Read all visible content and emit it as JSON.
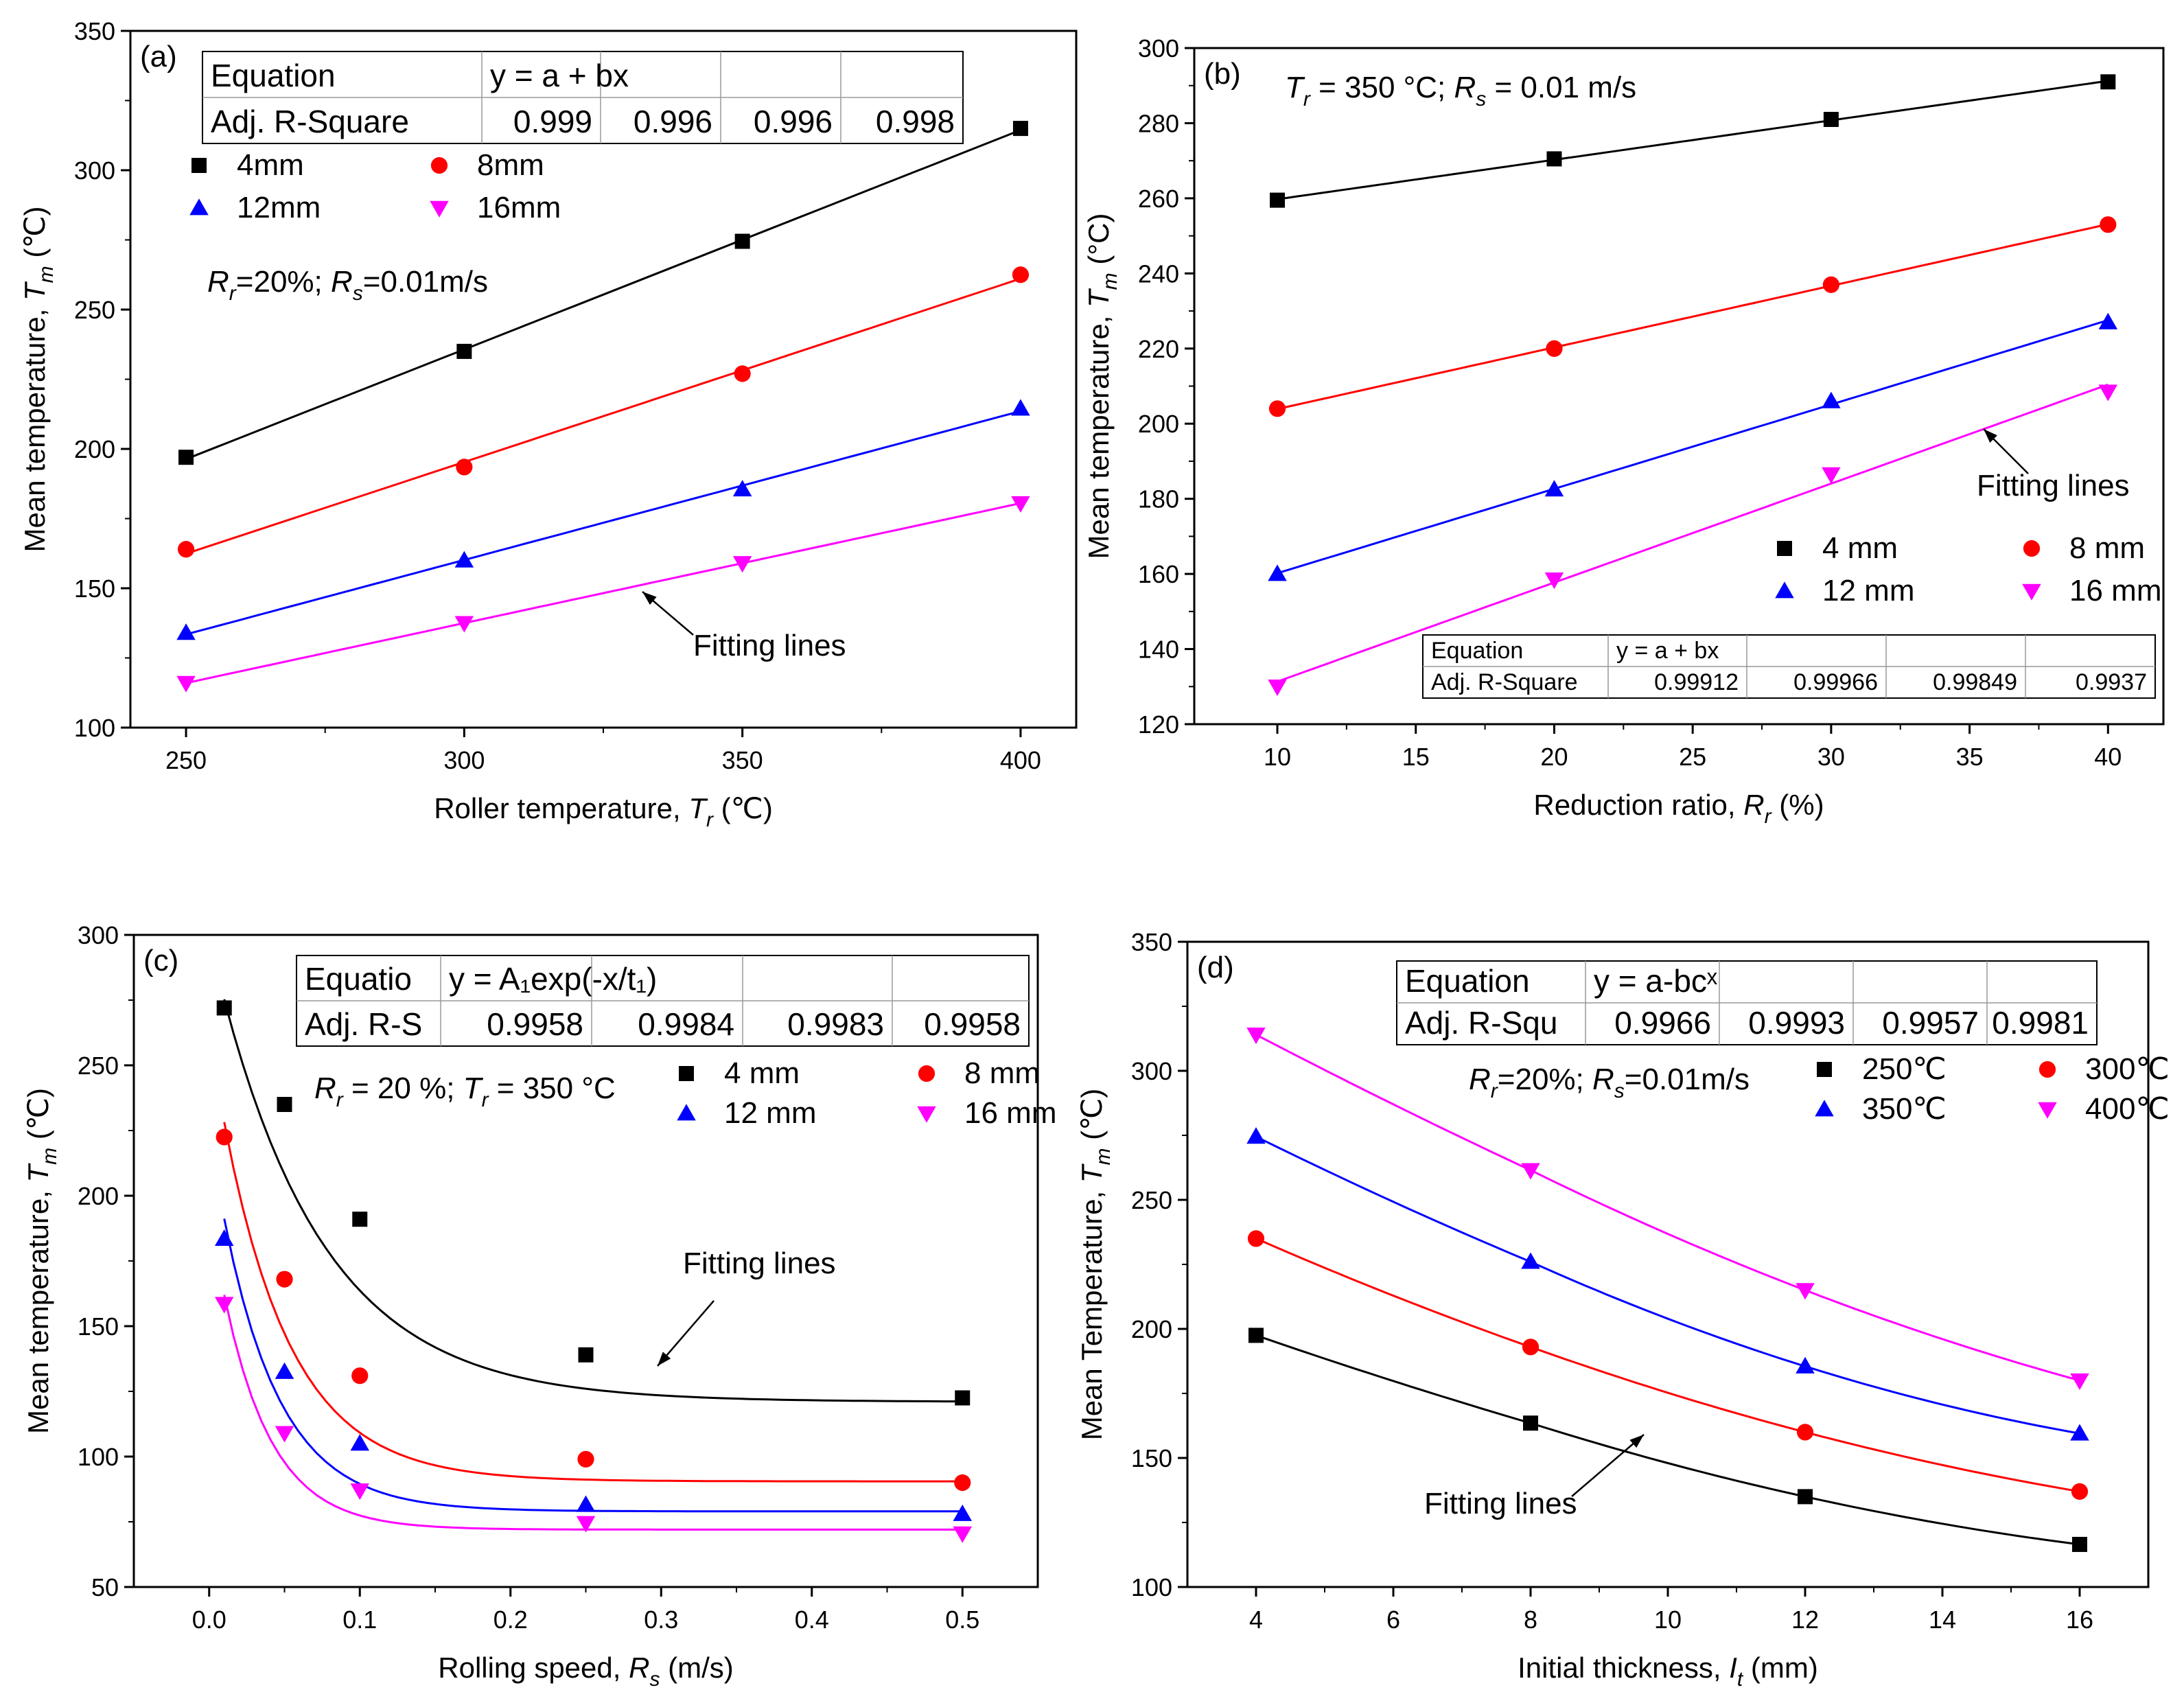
{
  "chart_data": [
    {
      "id": "a",
      "type": "scatter",
      "panel_label": "(a)",
      "xlabel": "Roller temperature, ",
      "xlabel_var": "T",
      "xlabel_sub": "r",
      "xlabel_unit": " (℃)",
      "ylabel": "Mean temperature, ",
      "ylabel_var": "T",
      "ylabel_sub": "m",
      "ylabel_unit": " (℃)",
      "xlim": [
        240,
        410
      ],
      "ylim": [
        100,
        350
      ],
      "xticks": [
        250,
        300,
        350,
        400
      ],
      "yticks": [
        100,
        150,
        200,
        250,
        300,
        350
      ],
      "fit_type": "linear",
      "table": {
        "row1_label": "Equation",
        "equation": "y = a + bx",
        "row2_label": "Adj. R-Square",
        "values": [
          "0.999",
          "0.996",
          "0.996",
          "0.998"
        ]
      },
      "condition_text": {
        "p1": "R",
        "s1": "r",
        "t1": "=20%; ",
        "p2": "R",
        "s2": "s",
        "t2": "=0.01m/s"
      },
      "fitting_label": "Fitting lines",
      "series": [
        {
          "name": "4mm",
          "color": "#000000",
          "marker": "square",
          "x": [
            250,
            300,
            350,
            400
          ],
          "y": [
            197,
            235,
            274.5,
            315
          ]
        },
        {
          "name": "8mm",
          "color": "#ff0000",
          "marker": "circle",
          "x": [
            250,
            300,
            350,
            400
          ],
          "y": [
            164,
            193.5,
            227,
            262.5
          ]
        },
        {
          "name": "12mm",
          "color": "#0000ff",
          "marker": "triangle-up",
          "x": [
            250,
            300,
            350,
            400
          ],
          "y": [
            134,
            160,
            185.5,
            214.5
          ]
        },
        {
          "name": "16mm",
          "color": "#ff00ff",
          "marker": "triangle-down",
          "x": [
            250,
            300,
            350,
            400
          ],
          "y": [
            116,
            137.5,
            159,
            180.5
          ]
        }
      ]
    },
    {
      "id": "b",
      "type": "scatter",
      "panel_label": "(b)",
      "xlabel": "Reduction ratio, ",
      "xlabel_var": "R",
      "xlabel_sub": "r",
      "xlabel_unit": "  (%)",
      "ylabel": "Mean temperature, ",
      "ylabel_var": "T",
      "ylabel_sub": "m",
      "ylabel_unit": " (°C)",
      "xlim": [
        7,
        42
      ],
      "ylim": [
        120,
        300
      ],
      "xticks": [
        10,
        15,
        20,
        25,
        30,
        35,
        40
      ],
      "yticks": [
        120,
        140,
        160,
        180,
        200,
        220,
        240,
        260,
        280,
        300
      ],
      "fit_type": "linear",
      "table": {
        "row1_label": "Equation",
        "equation": "y = a + bx",
        "row2_label": "Adj. R-Square",
        "values": [
          "0.99912",
          "0.99966",
          "0.99849",
          "0.9937"
        ]
      },
      "condition_text": {
        "p1": "T",
        "s1": "r",
        "t1": " = 350 °C;  ",
        "p2": "R",
        "s2": "s",
        "t2": " = 0.01 m/s"
      },
      "fitting_label": "Fitting lines",
      "series": [
        {
          "name": "4 mm",
          "color": "#000000",
          "marker": "square",
          "x": [
            10,
            20,
            30,
            40
          ],
          "y": [
            259.5,
            270.5,
            281,
            291
          ]
        },
        {
          "name": "8 mm",
          "color": "#ff0000",
          "marker": "circle",
          "x": [
            10,
            20,
            30,
            40
          ],
          "y": [
            204,
            220,
            237,
            253
          ]
        },
        {
          "name": "12 mm",
          "color": "#0000ff",
          "marker": "triangle-up",
          "x": [
            10,
            20,
            30,
            40
          ],
          "y": [
            160,
            182.5,
            206,
            227
          ]
        },
        {
          "name": "16 mm",
          "color": "#ff00ff",
          "marker": "triangle-down",
          "x": [
            10,
            20,
            30,
            40
          ],
          "y": [
            130,
            158.5,
            186.5,
            208.5
          ]
        }
      ]
    },
    {
      "id": "c",
      "type": "scatter",
      "panel_label": "(c)",
      "xlabel": "Rolling speed, ",
      "xlabel_var": "R",
      "xlabel_sub": "s",
      "xlabel_unit": "  (m/s)",
      "ylabel": "Mean temperature, ",
      "ylabel_var": "T",
      "ylabel_sub": "m",
      "ylabel_unit": " (℃)",
      "xlim": [
        -0.05,
        0.55
      ],
      "ylim": [
        50,
        300
      ],
      "xticks": [
        0.0,
        0.1,
        0.2,
        0.3,
        0.4,
        0.5
      ],
      "yticks": [
        50,
        100,
        150,
        200,
        250,
        300
      ],
      "fit_type": "exp_decay",
      "table": {
        "row1_label": "Equatio",
        "equation": "y = A₁exp(-x/t₁)",
        "row2_label": "Adj. R-S",
        "values": [
          "0.9958",
          "0.9984",
          "0.9983",
          "0.9958"
        ]
      },
      "condition_text": {
        "p1": "R",
        "s1": "r",
        "t1": " = 20 %;   ",
        "p2": "T",
        "s2": "r",
        "t2": " = 350 °C"
      },
      "fitting_label": "Fitting lines",
      "series": [
        {
          "name": "4 mm",
          "color": "#000000",
          "marker": "square",
          "x": [
            0.01,
            0.05,
            0.1,
            0.25,
            0.5
          ],
          "y": [
            272,
            235,
            191,
            139,
            122.5
          ],
          "fit": {
            "y0": 121,
            "A": 178,
            "t": 0.07
          }
        },
        {
          "name": "8 mm",
          "color": "#ff0000",
          "marker": "circle",
          "x": [
            0.01,
            0.05,
            0.1,
            0.25,
            0.5
          ],
          "y": [
            222.5,
            168,
            131,
            99,
            90
          ],
          "fit": {
            "y0": 90.5,
            "A": 172,
            "t": 0.045
          }
        },
        {
          "name": "12 mm",
          "color": "#0000ff",
          "marker": "triangle-up",
          "x": [
            0.01,
            0.05,
            0.1,
            0.25,
            0.5
          ],
          "y": [
            183.5,
            132.5,
            105,
            81.5,
            78
          ],
          "fit": {
            "y0": 79,
            "A": 146,
            "t": 0.038
          }
        },
        {
          "name": "16 mm",
          "color": "#ff00ff",
          "marker": "triangle-down",
          "x": [
            0.01,
            0.05,
            0.1,
            0.25,
            0.5
          ],
          "y": [
            158.5,
            109,
            87,
            74.5,
            70.5
          ],
          "fit": {
            "y0": 72,
            "A": 123,
            "t": 0.032
          }
        }
      ]
    },
    {
      "id": "d",
      "type": "scatter",
      "panel_label": "(d)",
      "xlabel": "Initial thickness, ",
      "xlabel_var": "I",
      "xlabel_sub": "t",
      "xlabel_unit": " (mm)",
      "ylabel": "Mean Temperature, ",
      "ylabel_var": "T",
      "ylabel_sub": "m",
      "ylabel_unit": " (℃)",
      "xlim": [
        3,
        17
      ],
      "ylim": [
        100,
        350
      ],
      "xticks": [
        4,
        6,
        8,
        10,
        12,
        14,
        16
      ],
      "yticks": [
        100,
        150,
        200,
        250,
        300,
        350
      ],
      "fit_type": "asymptotic",
      "table": {
        "row1_label": "Equation",
        "equation": "y = a-bcˣ",
        "row2_label": "Adj. R-Squ",
        "values": [
          "0.9966",
          "0.9993",
          "0.9957",
          "0.9981"
        ]
      },
      "condition_text": {
        "p1": "R",
        "s1": "r",
        "t1": "=20%; ",
        "p2": "R",
        "s2": "s",
        "t2": "=0.01m/s"
      },
      "fitting_label": "Fitting lines",
      "series": [
        {
          "name": "250℃",
          "color": "#000000",
          "marker": "square",
          "x": [
            4,
            8,
            12,
            16
          ],
          "y": [
            197.5,
            163.5,
            135,
            116.5
          ]
        },
        {
          "name": "300℃",
          "color": "#ff0000",
          "marker": "circle",
          "x": [
            4,
            8,
            12,
            16
          ],
          "y": [
            235,
            193,
            160,
            137
          ]
        },
        {
          "name": "350℃",
          "color": "#0000ff",
          "marker": "triangle-up",
          "x": [
            4,
            8,
            12,
            16
          ],
          "y": [
            274.5,
            226,
            185.5,
            159.5
          ]
        },
        {
          "name": "400℃",
          "color": "#ff00ff",
          "marker": "triangle-down",
          "x": [
            4,
            8,
            12,
            16
          ],
          "y": [
            314,
            261.5,
            215,
            180
          ]
        }
      ]
    }
  ]
}
